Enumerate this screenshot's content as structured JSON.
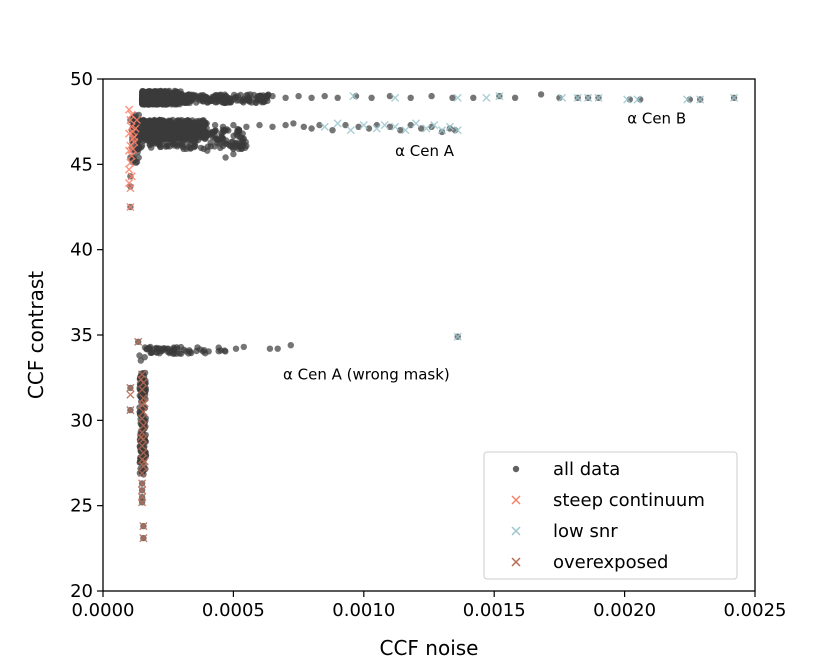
{
  "chart_data": {
    "type": "scatter",
    "xlabel": "CCF noise",
    "ylabel": "CCF contrast",
    "xlim": [
      0.0,
      0.0025
    ],
    "ylim": [
      20,
      50
    ],
    "xticks": [
      0.0,
      0.0005,
      0.001,
      0.0015,
      0.002,
      0.0025
    ],
    "xtick_labels": [
      "0.0000",
      "0.0005",
      "0.0010",
      "0.0015",
      "0.0020",
      "0.0025"
    ],
    "yticks": [
      20,
      25,
      30,
      35,
      40,
      45,
      50
    ],
    "ytick_labels": [
      "20",
      "25",
      "30",
      "35",
      "40",
      "45",
      "50"
    ],
    "grid": false,
    "legend_position": "lower-right",
    "annotations": [
      {
        "text": "α Cen B",
        "x": 0.00201,
        "y": 47.4
      },
      {
        "text": "α Cen A",
        "x": 0.00112,
        "y": 45.5
      },
      {
        "text": "α Cen A (wrong mask)",
        "x": 0.00069,
        "y": 32.4
      }
    ],
    "series": [
      {
        "name": "all data",
        "marker": "dot",
        "color": "#3a3a3a",
        "clusters": [
          {
            "x_range": [
              0.00015,
              0.0003
            ],
            "y_range": [
              48.5,
              49.3
            ],
            "n": 450
          },
          {
            "x_range": [
              0.0003,
              0.00065
            ],
            "y_range": [
              48.6,
              49.1
            ],
            "n": 200
          },
          {
            "x_range": [
              0.00012,
              0.0004
            ],
            "y_range": [
              46.5,
              47.6
            ],
            "n": 550
          },
          {
            "x_range": [
              0.00013,
              0.00055
            ],
            "y_range": [
              45.9,
              47.1
            ],
            "n": 250
          },
          {
            "x_range": [
              0.00016,
              0.00048
            ],
            "y_range": [
              33.9,
              34.3
            ],
            "n": 60
          }
        ],
        "points": [
          [
            0.00065,
            49.0
          ],
          [
            0.0007,
            48.9
          ],
          [
            0.00075,
            49.0
          ],
          [
            0.0008,
            48.9
          ],
          [
            0.00085,
            49.0
          ],
          [
            0.0009,
            48.9
          ],
          [
            0.00097,
            49.0
          ],
          [
            0.00103,
            48.9
          ],
          [
            0.0011,
            49.0
          ],
          [
            0.00118,
            48.9
          ],
          [
            0.00126,
            49.0
          ],
          [
            0.00134,
            48.9
          ],
          [
            0.00142,
            48.9
          ],
          [
            0.00152,
            49.0
          ],
          [
            0.00158,
            48.9
          ],
          [
            0.00168,
            49.1
          ],
          [
            0.00175,
            48.9
          ],
          [
            0.00182,
            48.9
          ],
          [
            0.00186,
            48.9
          ],
          [
            0.0019,
            48.9
          ],
          [
            0.00202,
            48.8
          ],
          [
            0.00206,
            48.8
          ],
          [
            0.00225,
            48.8
          ],
          [
            0.00229,
            48.8
          ],
          [
            0.00242,
            48.9
          ],
          [
            0.00047,
            45.4
          ],
          [
            0.0005,
            45.6
          ],
          [
            0.0004,
            45.8
          ],
          [
            0.00015,
            46.1
          ],
          [
            0.00043,
            47.3
          ],
          [
            0.00046,
            47.2
          ],
          [
            0.0005,
            47.3
          ],
          [
            0.00055,
            47.2
          ],
          [
            0.0006,
            47.3
          ],
          [
            0.00065,
            47.2
          ],
          [
            0.0007,
            47.3
          ],
          [
            0.00073,
            47.4
          ],
          [
            0.00077,
            47.2
          ],
          [
            0.0008,
            47.1
          ],
          [
            0.00083,
            47.3
          ],
          [
            0.00088,
            47.0
          ],
          [
            0.00093,
            47.3
          ],
          [
            0.00098,
            47.2
          ],
          [
            0.00102,
            47.1
          ],
          [
            0.00105,
            47.3
          ],
          [
            0.0011,
            47.2
          ],
          [
            0.00114,
            47.0
          ],
          [
            0.00118,
            47.3
          ],
          [
            0.00122,
            47.1
          ],
          [
            0.00126,
            47.2
          ],
          [
            0.0013,
            46.9
          ],
          [
            0.00133,
            47.1
          ],
          [
            0.00135,
            47.0
          ],
          [
            0.00051,
            34.2
          ],
          [
            0.00054,
            34.3
          ],
          [
            0.00064,
            34.2
          ],
          [
            0.00067,
            34.2
          ],
          [
            0.00072,
            34.4
          ],
          [
            0.000135,
            34.6
          ],
          [
            0.00014,
            33.8
          ],
          [
            0.000145,
            33.5
          ],
          [
            0.00016,
            33.7
          ],
          [
            0.00136,
            34.9
          ],
          [
            0.000105,
            47.6
          ],
          [
            0.000105,
            45.4
          ],
          [
            0.000105,
            44.3
          ],
          [
            0.000105,
            43.7
          ],
          [
            0.000105,
            42.5
          ],
          [
            0.000105,
            31.9
          ],
          [
            0.000105,
            30.6
          ],
          [
            0.00015,
            26.3
          ],
          [
            0.00015,
            25.9
          ],
          [
            0.00015,
            25.5
          ],
          [
            0.00015,
            25.2
          ],
          [
            0.000155,
            23.8
          ],
          [
            0.000155,
            23.1
          ]
        ],
        "columns": [
          {
            "x_range": [
              0.00014,
              0.000165
            ],
            "y_range": [
              26.8,
              32.8
            ],
            "n": 140
          },
          {
            "x_range": [
              0.00011,
              0.00014
            ],
            "y_range": [
              45.0,
              48.0
            ],
            "n": 40
          }
        ]
      },
      {
        "name": "steep continuum",
        "marker": "x",
        "color": "#fa8068",
        "points": [
          [
            0.0001,
            48.2
          ],
          [
            0.00011,
            47.9
          ],
          [
            0.000105,
            47.6
          ],
          [
            0.00011,
            47.2
          ],
          [
            0.0001,
            46.8
          ],
          [
            0.000115,
            46.5
          ],
          [
            0.000105,
            46.1
          ],
          [
            0.0001,
            45.8
          ],
          [
            0.00011,
            45.5
          ],
          [
            0.000105,
            45.1
          ],
          [
            0.0001,
            44.7
          ],
          [
            0.00011,
            44.3
          ],
          [
            0.0001,
            43.9
          ],
          [
            0.000105,
            43.6
          ],
          [
            0.000115,
            45.9
          ],
          [
            0.00012,
            46.6
          ],
          [
            0.000125,
            47.1
          ],
          [
            0.00013,
            47.6
          ],
          [
            0.00012,
            46.3
          ],
          [
            0.000115,
            46.9
          ],
          [
            0.000105,
            42.5
          ]
        ]
      },
      {
        "name": "low snr",
        "marker": "x",
        "color": "#9cc7cf",
        "points": [
          [
            0.00085,
            47.2
          ],
          [
            0.0009,
            47.4
          ],
          [
            0.00095,
            47.0
          ],
          [
            0.001,
            47.3
          ],
          [
            0.00105,
            47.1
          ],
          [
            0.00108,
            47.3
          ],
          [
            0.00112,
            47.2
          ],
          [
            0.00116,
            47.0
          ],
          [
            0.0012,
            47.4
          ],
          [
            0.00124,
            47.1
          ],
          [
            0.00127,
            47.3
          ],
          [
            0.0013,
            47.0
          ],
          [
            0.00133,
            47.2
          ],
          [
            0.00136,
            47.0
          ],
          [
            0.00096,
            49.0
          ],
          [
            0.00112,
            48.9
          ],
          [
            0.00136,
            48.9
          ],
          [
            0.00147,
            48.9
          ],
          [
            0.00152,
            49.0
          ],
          [
            0.00176,
            48.9
          ],
          [
            0.00182,
            48.9
          ],
          [
            0.00186,
            48.9
          ],
          [
            0.0019,
            48.9
          ],
          [
            0.00201,
            48.8
          ],
          [
            0.00205,
            48.8
          ],
          [
            0.00224,
            48.8
          ],
          [
            0.00229,
            48.8
          ],
          [
            0.00242,
            48.9
          ],
          [
            0.00136,
            34.9
          ]
        ]
      },
      {
        "name": "overexposed",
        "marker": "x",
        "color": "#b86a52",
        "points": [
          [
            0.000135,
            34.6
          ],
          [
            0.000105,
            31.9
          ],
          [
            0.000105,
            31.5
          ],
          [
            0.000105,
            30.6
          ],
          [
            0.00015,
            32.7
          ],
          [
            0.000155,
            32.2
          ],
          [
            0.00015,
            31.8
          ],
          [
            0.000155,
            31.3
          ],
          [
            0.00015,
            30.9
          ],
          [
            0.000155,
            30.5
          ],
          [
            0.00015,
            30.1
          ],
          [
            0.000155,
            29.7
          ],
          [
            0.00015,
            29.3
          ],
          [
            0.000155,
            28.9
          ],
          [
            0.00015,
            28.5
          ],
          [
            0.000155,
            28.1
          ],
          [
            0.00015,
            27.7
          ],
          [
            0.000155,
            27.3
          ],
          [
            0.00015,
            26.9
          ],
          [
            0.000145,
            32.4
          ],
          [
            0.00016,
            31.0
          ],
          [
            0.000145,
            29.0
          ],
          [
            0.00016,
            27.6
          ],
          [
            0.00015,
            26.3
          ],
          [
            0.00015,
            25.9
          ],
          [
            0.00015,
            25.5
          ],
          [
            0.00015,
            25.2
          ],
          [
            0.000155,
            23.8
          ],
          [
            0.000155,
            23.1
          ]
        ]
      }
    ]
  }
}
